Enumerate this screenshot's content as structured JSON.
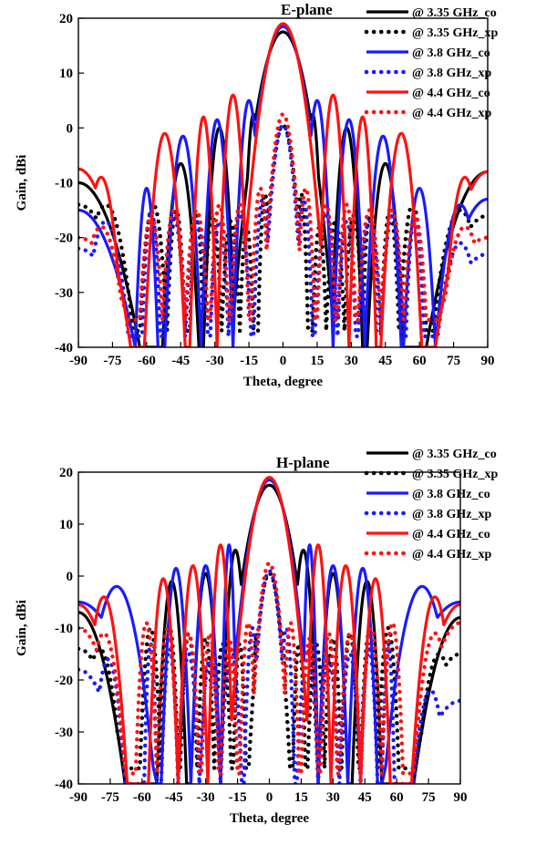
{
  "colors": {
    "black": "#000000",
    "blue": "#1a1aff",
    "red": "#ff1111"
  },
  "chart_data": [
    {
      "type": "line",
      "title": "E-plane",
      "xlabel": "Theta, degree",
      "ylabel": "Gain, dBi",
      "xlim": [
        -90,
        90
      ],
      "ylim": [
        -40,
        20
      ],
      "xticks": [
        -90,
        -75,
        -60,
        -45,
        -30,
        -15,
        0,
        15,
        30,
        45,
        60,
        75,
        90
      ],
      "yticks": [
        -40,
        -30,
        -20,
        -10,
        0,
        10,
        20
      ],
      "grid": false,
      "legend_position": "top-right",
      "series": [
        {
          "name": "@ 3.35 GHz_co",
          "color": "black",
          "dash": "solid",
          "main": 17.5,
          "bw": 10.5,
          "peaks": [
            [
              -45,
              -6.5
            ],
            [
              -28,
              0
            ],
            [
              -13,
              2.5
            ],
            [
              13,
              2.5
            ],
            [
              28,
              0
            ],
            [
              45,
              -6.5
            ]
          ],
          "nulls": [
            -63,
            -37,
            -21,
            -8,
            8,
            21,
            37,
            63
          ],
          "endpoints": [
            -10,
            -8
          ],
          "null_depth": -40
        },
        {
          "name": "@ 3.35 GHz_xp",
          "color": "black",
          "dash": "dot",
          "main": 0.5,
          "bw": 5.5,
          "peaks": [
            [
              -78,
              -14
            ],
            [
              -57,
              -14
            ],
            [
              -47,
              -15
            ],
            [
              -38,
              -16
            ],
            [
              -31,
              -16
            ],
            [
              -23,
              -17
            ],
            [
              -16,
              -18
            ],
            [
              -8,
              -12
            ],
            [
              8,
              -12
            ],
            [
              16,
              -18
            ],
            [
              23,
              -17
            ],
            [
              31,
              -16
            ],
            [
              38,
              -16
            ],
            [
              47,
              -15
            ],
            [
              57,
              -14
            ],
            [
              78,
              -15
            ]
          ],
          "nulls": [
            -66,
            -51,
            -42,
            -35,
            -27,
            -19,
            -12,
            -5,
            5,
            12,
            19,
            27,
            35,
            42,
            51,
            66
          ],
          "endpoints": [
            -14,
            -16
          ],
          "null_depth": -37
        },
        {
          "name": "@ 3.8 GHz_co",
          "color": "blue",
          "dash": "solid",
          "main": 18.5,
          "bw": 9.5,
          "peaks": [
            [
              -60,
              -11
            ],
            [
              -44,
              -1.5
            ],
            [
              -29,
              1.5
            ],
            [
              -15,
              5
            ],
            [
              15,
              5
            ],
            [
              29,
              1.5
            ],
            [
              44,
              -1.5
            ],
            [
              60,
              -11
            ],
            [
              78,
              -14
            ]
          ],
          "nulls": [
            -65,
            -52,
            -36,
            -22,
            -7,
            7,
            22,
            36,
            52,
            67
          ],
          "endpoints": [
            -15,
            -13
          ],
          "null_depth": -40
        },
        {
          "name": "@ 3.8 GHz_xp",
          "color": "blue",
          "dash": "dot",
          "main": 0.5,
          "bw": 5,
          "peaks": [
            [
              -78,
              -17
            ],
            [
              -58,
              -15
            ],
            [
              -48,
              -16
            ],
            [
              -38,
              -17
            ],
            [
              -28,
              -17
            ],
            [
              -19,
              -16
            ],
            [
              -9,
              -13
            ],
            [
              9,
              -13
            ],
            [
              19,
              -16
            ],
            [
              28,
              -17
            ],
            [
              38,
              -17
            ],
            [
              48,
              -16
            ],
            [
              58,
              -16
            ],
            [
              78,
              -21
            ]
          ],
          "nulls": [
            -68,
            -54,
            -43,
            -33,
            -24,
            -14,
            -5,
            5,
            14,
            24,
            33,
            43,
            54,
            68
          ],
          "endpoints": [
            -22,
            -23
          ],
          "null_depth": -38
        },
        {
          "name": "@ 4.4 GHz_co",
          "color": "red",
          "dash": "solid",
          "main": 19,
          "bw": 9,
          "peaks": [
            [
              -80,
              -9
            ],
            [
              -52,
              -1
            ],
            [
              -35,
              2
            ],
            [
              -22,
              6
            ],
            [
              22,
              6
            ],
            [
              35,
              2
            ],
            [
              52,
              -1
            ],
            [
              80,
              -9
            ]
          ],
          "nulls": [
            -67,
            -43,
            -29,
            -15,
            15,
            29,
            43,
            67
          ],
          "endpoints": [
            -7.5,
            -8
          ],
          "null_depth": -40
        },
        {
          "name": "@ 4.4 GHz_xp",
          "color": "red",
          "dash": "dot",
          "main": 2.5,
          "bw": 5,
          "peaks": [
            [
              -80,
              -18
            ],
            [
              -58,
              -16
            ],
            [
              -48,
              -15
            ],
            [
              -38,
              -15
            ],
            [
              -28,
              -14
            ],
            [
              -19,
              -14
            ],
            [
              -10,
              -11
            ],
            [
              10,
              -11
            ],
            [
              19,
              -14
            ],
            [
              28,
              -14
            ],
            [
              38,
              -15
            ],
            [
              48,
              -15
            ],
            [
              58,
              -16
            ],
            [
              80,
              -18
            ]
          ],
          "nulls": [
            -68,
            -53,
            -43,
            -33,
            -24,
            -15,
            -6,
            6,
            15,
            24,
            33,
            43,
            53,
            68
          ],
          "endpoints": [
            -20,
            -20
          ],
          "null_depth": -35
        }
      ]
    },
    {
      "type": "line",
      "title": "H-plane",
      "xlabel": "Theta, degree",
      "ylabel": "Gain, dBi",
      "xlim": [
        -90,
        90
      ],
      "ylim": [
        -40,
        20
      ],
      "xticks": [
        -90,
        -75,
        -60,
        -45,
        -30,
        -15,
        0,
        15,
        30,
        45,
        60,
        75,
        90
      ],
      "yticks": [
        -40,
        -30,
        -20,
        -10,
        0,
        10,
        20
      ],
      "grid": false,
      "legend_position": "top-right",
      "series": [
        {
          "name": "@ 3.35 GHz_co",
          "color": "black",
          "dash": "solid",
          "main": 17.5,
          "bw": 10.5,
          "peaks": [
            [
              -46,
              -1
            ],
            [
              -30,
              0.5
            ],
            [
              -16,
              5
            ],
            [
              16,
              5
            ],
            [
              30,
              0.5
            ],
            [
              46,
              -1
            ]
          ],
          "nulls": [
            -68,
            -39,
            -23,
            -9,
            9,
            23,
            39,
            68
          ],
          "endpoints": [
            -7,
            -8
          ],
          "null_depth": -40
        },
        {
          "name": "@ 3.35 GHz_xp",
          "color": "black",
          "dash": "dot",
          "main": 0.5,
          "bw": 5.5,
          "peaks": [
            [
              -80,
              -14
            ],
            [
              -56,
              -10
            ],
            [
              -47,
              -10
            ],
            [
              -38,
              -11
            ],
            [
              -30,
              -12
            ],
            [
              -22,
              -13
            ],
            [
              -14,
              -13
            ],
            [
              -6,
              -11
            ],
            [
              6,
              -11
            ],
            [
              14,
              -13
            ],
            [
              22,
              -13
            ],
            [
              30,
              -12
            ],
            [
              38,
              -11
            ],
            [
              47,
              -11
            ],
            [
              56,
              -10
            ],
            [
              80,
              -15
            ]
          ],
          "nulls": [
            -68,
            -51,
            -43,
            -34,
            -26,
            -18,
            -11,
            -4,
            4,
            11,
            18,
            26,
            34,
            43,
            51,
            68
          ],
          "endpoints": [
            -14,
            -15
          ],
          "null_depth": -37
        },
        {
          "name": "@ 3.8 GHz_xp",
          "color": "blue",
          "dash": "dot",
          "main": 1,
          "bw": 5,
          "peaks": [
            [
              -76,
              -16
            ],
            [
              -56,
              -13
            ],
            [
              -47,
              -14
            ],
            [
              -38,
              -15
            ],
            [
              -28,
              -16
            ],
            [
              -18,
              -14
            ],
            [
              -8,
              -10
            ],
            [
              8,
              -10
            ],
            [
              18,
              -14
            ],
            [
              28,
              -16
            ],
            [
              38,
              -15
            ],
            [
              47,
              -14
            ],
            [
              56,
              -13
            ],
            [
              76,
              -22
            ]
          ],
          "nulls": [
            -68,
            -53,
            -43,
            -33,
            -23,
            -13,
            -4,
            4,
            13,
            23,
            33,
            43,
            53,
            68
          ],
          "endpoints": [
            -18,
            -24
          ],
          "null_depth": -40
        },
        {
          "name": "@ 3.8 GHz_co",
          "color": "blue",
          "dash": "solid",
          "main": 18.5,
          "bw": 9.5,
          "peaks": [
            [
              -72,
              -2
            ],
            [
              -44,
              1.5
            ],
            [
              -30,
              2
            ],
            [
              -19,
              6
            ],
            [
              19,
              6
            ],
            [
              30,
              2
            ],
            [
              44,
              1.5
            ],
            [
              72,
              -2
            ]
          ],
          "nulls": [
            -53,
            -37,
            -23,
            -8,
            8,
            23,
            37,
            53
          ],
          "endpoints": [
            -5,
            -5
          ],
          "null_depth": -40
        },
        {
          "name": "@ 4.4 GHz_co",
          "color": "red",
          "dash": "solid",
          "main": 19,
          "bw": 9,
          "peaks": [
            [
              -78,
              -4
            ],
            [
              -50,
              -0.5
            ],
            [
              -36,
              2
            ],
            [
              -23,
              6
            ],
            [
              23,
              6
            ],
            [
              36,
              2
            ],
            [
              50,
              -0.5
            ],
            [
              78,
              -4
            ]
          ],
          "nulls": [
            -67,
            -43,
            -29,
            -15,
            15,
            29,
            43,
            67
          ],
          "endpoints": [
            -5.5,
            -5.5
          ],
          "null_depth": -40
        },
        {
          "name": "@ 4.4 GHz_xp",
          "color": "red",
          "dash": "dot",
          "main": 2.5,
          "bw": 5,
          "peaks": [
            [
              -78,
              -11
            ],
            [
              -58,
              -9
            ],
            [
              -48,
              -10
            ],
            [
              -38,
              -11
            ],
            [
              -28,
              -11
            ],
            [
              -19,
              -12
            ],
            [
              -10,
              -9
            ],
            [
              10,
              -9
            ],
            [
              19,
              -12
            ],
            [
              28,
              -11
            ],
            [
              38,
              -11
            ],
            [
              48,
              -10
            ],
            [
              58,
              -9
            ],
            [
              78,
              -11
            ]
          ],
          "nulls": [
            -68,
            -53,
            -43,
            -33,
            -24,
            -15,
            -6,
            6,
            15,
            24,
            33,
            43,
            53,
            68
          ],
          "endpoints": [
            -10,
            -9
          ],
          "null_depth": -38
        }
      ],
      "legend_entries": [
        {
          "name": "@ 3.35 GHz_co",
          "color": "black",
          "dash": "solid"
        },
        {
          "name": "@ 3.35 GHz_xp",
          "color": "black",
          "dash": "dot"
        },
        {
          "name": "@ 3.8 GHz_co",
          "color": "blue",
          "dash": "solid"
        },
        {
          "name": "@ 3.8 GHz_xp",
          "color": "blue",
          "dash": "dot"
        },
        {
          "name": "@ 4.4 GHz_co",
          "color": "red",
          "dash": "solid"
        },
        {
          "name": "@ 4.4 GHz_xp",
          "color": "red",
          "dash": "dot"
        }
      ]
    }
  ]
}
